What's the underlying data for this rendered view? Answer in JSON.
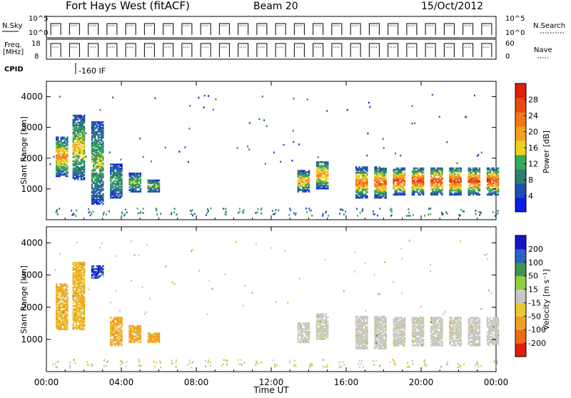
{
  "header": {
    "radar": "Fort Hays West (fitACF)",
    "beam": "Beam 20",
    "date": "15/Oct/2012"
  },
  "aux_panels": {
    "nsky_label": "N.Sky",
    "nsky_ticks": [
      "10^5",
      "10^0"
    ],
    "nsearch_label": "N.Search",
    "nsearch_ticks": [
      "10^5",
      "10^0"
    ],
    "freq_label_1": "Freq.",
    "freq_label_2": "[MHz]",
    "freq_ticks": [
      "18",
      "8"
    ],
    "nave_label": "Nave",
    "nave_ticks": [
      "60",
      "0"
    ],
    "cpid_label": "CPID",
    "cpid_value": "-160 IF"
  },
  "colors": {
    "power_scale": [
      "#0a1ee6",
      "#1e4fb0",
      "#2d7d74",
      "#3aa85a",
      "#f0d21e",
      "#f5a01e",
      "#f07818",
      "#e84a10",
      "#e01e0a"
    ],
    "velocity_scale": [
      "#1414c8",
      "#2a62c8",
      "#3c9650",
      "#8cd23c",
      "#c8c8c0",
      "#e8c832",
      "#f0a01e",
      "#f06a14",
      "#e01e0a"
    ]
  },
  "chart_data": [
    {
      "type": "heatmap",
      "title": "Power",
      "xlabel": "Time UT",
      "ylabel": "Slant Range [km]",
      "x_ticks": [
        "00:00",
        "04:00",
        "08:00",
        "12:00",
        "16:00",
        "20:00",
        "00:00"
      ],
      "y_ticks": [
        1000,
        2000,
        3000,
        4000
      ],
      "ylim": [
        0,
        4500
      ],
      "xlim_hours": [
        0,
        24
      ],
      "colorbar_label": "Power [dB]",
      "colorbar_ticks": [
        "28",
        "24",
        "20",
        "16",
        "12",
        "8",
        "4"
      ],
      "colorbar_range": [
        0,
        32
      ],
      "scans": [
        {
          "t": 0.8,
          "lo": 1400,
          "hi": 2700,
          "peak": 22
        },
        {
          "t": 1.7,
          "lo": 1300,
          "hi": 3400,
          "peak": 18
        },
        {
          "t": 2.7,
          "lo": 500,
          "hi": 3200,
          "peak": 14
        },
        {
          "t": 3.7,
          "lo": 700,
          "hi": 1800,
          "peak": 12
        },
        {
          "t": 4.7,
          "lo": 900,
          "hi": 1500,
          "peak": 14
        },
        {
          "t": 5.7,
          "lo": 900,
          "hi": 1300,
          "peak": 14
        },
        {
          "t": 13.7,
          "lo": 900,
          "hi": 1600,
          "peak": 20
        },
        {
          "t": 14.7,
          "lo": 1000,
          "hi": 1900,
          "peak": 22
        },
        {
          "t": 16.8,
          "lo": 700,
          "hi": 1700,
          "peak": 24
        },
        {
          "t": 17.8,
          "lo": 700,
          "hi": 1700,
          "peak": 26
        },
        {
          "t": 18.8,
          "lo": 800,
          "hi": 1700,
          "peak": 27
        },
        {
          "t": 19.8,
          "lo": 800,
          "hi": 1700,
          "peak": 28
        },
        {
          "t": 20.8,
          "lo": 800,
          "hi": 1700,
          "peak": 28
        },
        {
          "t": 21.8,
          "lo": 800,
          "hi": 1700,
          "peak": 28
        },
        {
          "t": 22.8,
          "lo": 800,
          "hi": 1700,
          "peak": 28
        },
        {
          "t": 23.8,
          "lo": 800,
          "hi": 1700,
          "peak": 28
        }
      ]
    },
    {
      "type": "heatmap",
      "title": "Velocity",
      "xlabel": "Time UT",
      "ylabel": "Slant Range [km]",
      "x_ticks": [
        "00:00",
        "04:00",
        "08:00",
        "12:00",
        "16:00",
        "20:00",
        "00:00"
      ],
      "y_ticks": [
        1000,
        2000,
        3000,
        4000
      ],
      "ylim": [
        0,
        4500
      ],
      "xlim_hours": [
        0,
        24
      ],
      "colorbar_label": "Velocity [m s⁻¹]",
      "colorbar_ticks": [
        "200",
        "100",
        "50",
        "15",
        "-15",
        "-50",
        "-100",
        "-200"
      ],
      "colorbar_range": [
        -250,
        250
      ],
      "scans": [
        {
          "t": 0.8,
          "lo": 1300,
          "hi": 2700,
          "v": -50
        },
        {
          "t": 1.7,
          "lo": 1300,
          "hi": 3400,
          "v": -50
        },
        {
          "t": 2.7,
          "lo": 2900,
          "hi": 3300,
          "v": 200
        },
        {
          "t": 3.7,
          "lo": 800,
          "hi": 1700,
          "v": -60
        },
        {
          "t": 4.7,
          "lo": 900,
          "hi": 1400,
          "v": -60
        },
        {
          "t": 5.7,
          "lo": 900,
          "hi": 1200,
          "v": -60
        },
        {
          "t": 13.7,
          "lo": 900,
          "hi": 1500,
          "v": 0
        },
        {
          "t": 14.7,
          "lo": 1000,
          "hi": 1800,
          "v": 0
        },
        {
          "t": 16.8,
          "lo": 700,
          "hi": 1700,
          "v": 0
        },
        {
          "t": 17.8,
          "lo": 700,
          "hi": 1700,
          "v": 0
        },
        {
          "t": 18.8,
          "lo": 800,
          "hi": 1700,
          "v": 0
        },
        {
          "t": 19.8,
          "lo": 800,
          "hi": 1700,
          "v": 0
        },
        {
          "t": 20.8,
          "lo": 800,
          "hi": 1700,
          "v": 0
        },
        {
          "t": 21.8,
          "lo": 800,
          "hi": 1700,
          "v": 0
        },
        {
          "t": 22.8,
          "lo": 800,
          "hi": 1700,
          "v": 0
        },
        {
          "t": 23.8,
          "lo": 800,
          "hi": 1700,
          "v": 0
        }
      ]
    }
  ]
}
